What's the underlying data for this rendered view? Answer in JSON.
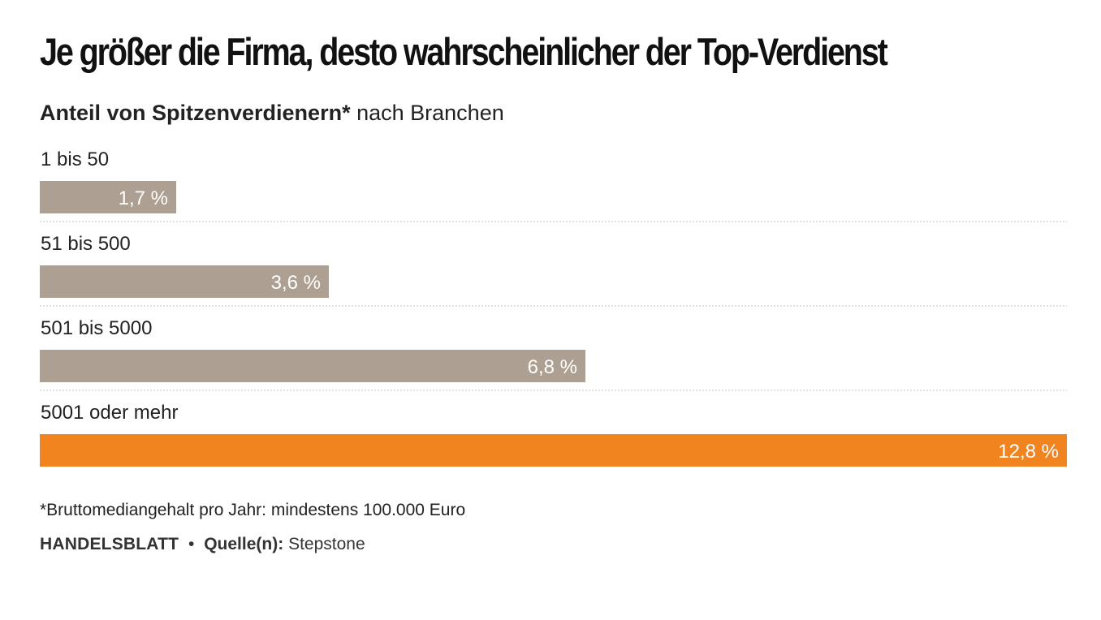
{
  "title": "Je größer die Firma, desto wahrscheinlicher der Top-Verdienst",
  "subtitle": {
    "bold": "Anteil von Spitzenverdienern*",
    "rest": "nach Branchen"
  },
  "footnote": "*Bruttomediangehalt pro Jahr: mindestens 100.000 Euro",
  "source": {
    "brand": "HANDELSBLATT",
    "separator": "•",
    "label": "Quelle(n):",
    "value": "Stepstone"
  },
  "colors": {
    "default_bar": "#ada092",
    "highlight_bar": "#f28420",
    "bar_label": "#ffffff",
    "divider": "#cccccc"
  },
  "chart_data": {
    "type": "bar",
    "orientation": "horizontal",
    "categories": [
      "1 bis 50",
      "51 bis 500",
      "501 bis 5000",
      "5001 oder mehr"
    ],
    "values": [
      1.7,
      3.6,
      6.8,
      12.8
    ],
    "value_labels": [
      "1,7 %",
      "3,6 %",
      "6,8 %",
      "12,8 %"
    ],
    "highlight": [
      false,
      false,
      false,
      true
    ],
    "xlim": [
      0,
      12.8
    ],
    "grid": false,
    "legend": "none"
  }
}
